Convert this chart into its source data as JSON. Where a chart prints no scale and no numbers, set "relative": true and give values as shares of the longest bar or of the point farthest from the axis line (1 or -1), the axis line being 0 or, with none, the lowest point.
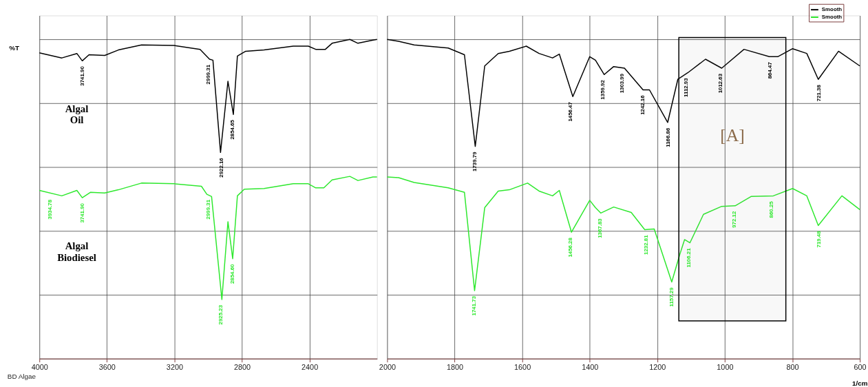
{
  "chart_data": [
    {
      "type": "line",
      "relative": true,
      "ylabel": "%T",
      "xlim": [
        4000,
        2000
      ],
      "xticks": [
        4000,
        3600,
        3200,
        2800,
        2400
      ],
      "tick_labels": "x",
      "grid": true,
      "series": [
        {
          "color": "#000000",
          "x": [
            4000,
            3867,
            3778,
            3746,
            3706,
            3613,
            3532,
            3395,
            3202,
            3048,
            2992,
            2972,
            2927,
            2883,
            2851,
            2827,
            2778,
            2669,
            2496,
            2407,
            2363,
            2306,
            2266,
            2161,
            2113,
            2024,
            2000
          ],
          "values": [
            0.958,
            0.942,
            0.956,
            0.933,
            0.952,
            0.95,
            0.967,
            0.983,
            0.981,
            0.969,
            0.938,
            0.935,
            0.646,
            0.869,
            0.765,
            0.948,
            0.963,
            0.967,
            0.979,
            0.979,
            0.969,
            0.969,
            0.988,
            1.0,
            0.988,
            0.998,
            1.0
          ]
        },
        {
          "color": "#2ee82e",
          "x": [
            4000,
            3867,
            3778,
            3746,
            3698,
            3613,
            3532,
            3395,
            3202,
            3040,
            3008,
            2980,
            2919,
            2883,
            2855,
            2827,
            2786,
            2669,
            2496,
            2407,
            2363,
            2315,
            2266,
            2161,
            2113,
            2024,
            2000
          ],
          "values": [
            0.527,
            0.51,
            0.527,
            0.504,
            0.521,
            0.519,
            0.529,
            0.55,
            0.548,
            0.54,
            0.515,
            0.508,
            0.185,
            0.429,
            0.313,
            0.51,
            0.531,
            0.533,
            0.548,
            0.548,
            0.535,
            0.535,
            0.56,
            0.571,
            0.558,
            0.569,
            0.569
          ]
        }
      ],
      "annotations": [
        "Algal Oil",
        "Algal Biodiesel",
        "BD Algae",
        {
          "text": "3741.90",
          "x": 3741.9,
          "y": 0.933
        },
        {
          "text": "2999.31",
          "x": 2999.31,
          "y": 0.938
        },
        {
          "text": "2922.16",
          "x": 2922.16,
          "y": 0.646
        },
        {
          "text": "2854.65",
          "x": 2854.65,
          "y": 0.765
        },
        {
          "text": "3934.78",
          "x": 3934.78,
          "y": 0.515
        },
        {
          "text": "3741.90",
          "x": 3741.9,
          "y": 0.504
        },
        {
          "text": "2999.31",
          "x": 2999.31,
          "y": 0.515
        },
        {
          "text": "2925.23",
          "x": 2925.23,
          "y": 0.185
        },
        {
          "text": "2854.60",
          "x": 2854.6,
          "y": 0.313
        }
      ]
    },
    {
      "type": "line",
      "relative": true,
      "xlabel": "1/cm",
      "xlim": [
        2000,
        600
      ],
      "xticks": [
        2000,
        1800,
        1600,
        1400,
        1200,
        1000,
        800,
        600
      ],
      "tick_labels": "x",
      "grid": true,
      "legend": "top right",
      "series": [
        {
          "name": "Smooth",
          "color": "#000000",
          "x": [
            2000,
            1966,
            1920,
            1819,
            1771,
            1739,
            1711,
            1671,
            1638,
            1588,
            1550,
            1510,
            1490,
            1450,
            1400,
            1383,
            1357,
            1329,
            1297,
            1242,
            1223,
            1169,
            1139,
            1109,
            1057,
            1009,
            943,
            868,
            843,
            799,
            757,
            723,
            663,
            600
          ],
          "values": [
            1.0,
            0.994,
            0.983,
            0.973,
            0.952,
            0.665,
            0.917,
            0.956,
            0.963,
            0.979,
            0.956,
            0.942,
            0.954,
            0.821,
            0.946,
            0.935,
            0.89,
            0.915,
            0.91,
            0.842,
            0.842,
            0.74,
            0.875,
            0.896,
            0.938,
            0.91,
            0.969,
            0.946,
            0.946,
            0.971,
            0.956,
            0.875,
            0.963,
            0.917
          ]
        },
        {
          "name": "Smooth",
          "color": "#2ee82e",
          "x": [
            2000,
            1966,
            1920,
            1819,
            1771,
            1741,
            1711,
            1671,
            1638,
            1584,
            1550,
            1510,
            1490,
            1454,
            1400,
            1383,
            1367,
            1329,
            1277,
            1237,
            1209,
            1157,
            1133,
            1119,
            1103,
            1063,
            1009,
            969,
            922,
            856,
            799,
            757,
            723,
            653,
            600
          ],
          "values": [
            0.569,
            0.567,
            0.552,
            0.535,
            0.521,
            0.213,
            0.473,
            0.525,
            0.529,
            0.55,
            0.525,
            0.51,
            0.527,
            0.396,
            0.496,
            0.473,
            0.456,
            0.475,
            0.458,
            0.404,
            0.406,
            0.24,
            0.327,
            0.373,
            0.363,
            0.452,
            0.477,
            0.479,
            0.508,
            0.51,
            0.533,
            0.51,
            0.417,
            0.51,
            0.467
          ]
        }
      ],
      "bands": [
        {
          "axis": "x",
          "from": 1136,
          "to": 819,
          "label": "[A]"
        }
      ],
      "annotations": [
        {
          "text": "1739.79",
          "x": 1739.79,
          "y": 0.665
        },
        {
          "text": "1456.47",
          "x": 1456.47,
          "y": 0.821
        },
        {
          "text": "1359.92",
          "x": 1359.92,
          "y": 0.89
        },
        {
          "text": "1303.99",
          "x": 1303.99,
          "y": 0.91
        },
        {
          "text": "1242.16",
          "x": 1242.16,
          "y": 0.842
        },
        {
          "text": "1166.86",
          "x": 1166.86,
          "y": 0.74
        },
        {
          "text": "1112.93",
          "x": 1112.93,
          "y": 0.896
        },
        {
          "text": "1012.63",
          "x": 1012.63,
          "y": 0.91
        },
        {
          "text": "864.47",
          "x": 864.47,
          "y": 0.946
        },
        {
          "text": "721.38",
          "x": 721.38,
          "y": 0.875
        },
        {
          "text": "1741.73",
          "x": 1741.73,
          "y": 0.213
        },
        {
          "text": "1456.28",
          "x": 1456.28,
          "y": 0.396
        },
        {
          "text": "1367.83",
          "x": 1367.83,
          "y": 0.456
        },
        {
          "text": "1232.81",
          "x": 1232.81,
          "y": 0.404
        },
        {
          "text": "1157.29",
          "x": 1157.29,
          "y": 0.24
        },
        {
          "text": "1106.21",
          "x": 1106.21,
          "y": 0.363
        },
        {
          "text": "972.12",
          "x": 972.12,
          "y": 0.479
        },
        {
          "text": "860.25",
          "x": 860.25,
          "y": 0.51
        },
        {
          "text": "719.48",
          "x": 719.48,
          "y": 0.417
        }
      ]
    }
  ]
}
